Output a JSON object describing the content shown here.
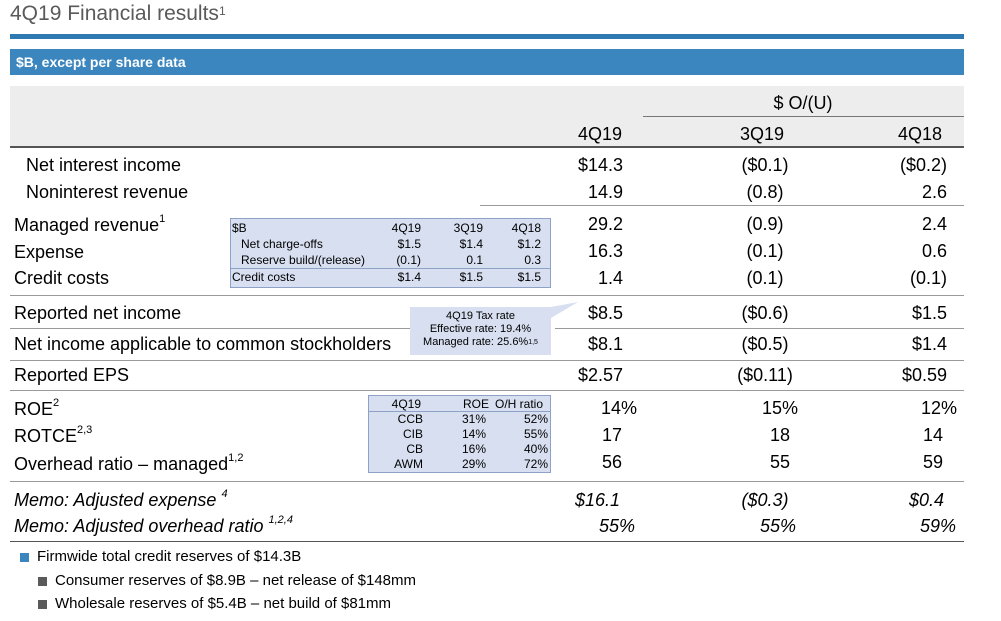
{
  "title": {
    "text": "4Q19 Financial results",
    "sup": "1"
  },
  "subheader": "$B, except per share data",
  "columns": {
    "group": "$ O/(U)",
    "c1": "4Q19",
    "c2": "3Q19",
    "c3": "4Q18"
  },
  "rows": {
    "nii": {
      "label": "Net interest income",
      "c1": "$14.3",
      "c2": "($0.1)",
      "c3": "($0.2)"
    },
    "nir": {
      "label": "Noninterest revenue",
      "c1": "14.9",
      "c2": "(0.8)",
      "c3": "2.6"
    },
    "mr": {
      "label": "Managed revenue",
      "sup": "1",
      "c1": "29.2",
      "c2": "(0.9)",
      "c3": "2.4"
    },
    "exp": {
      "label": "Expense",
      "c1": "16.3",
      "c2": "(0.1)",
      "c3": "0.6"
    },
    "cc": {
      "label": "Credit costs",
      "c1": "1.4",
      "c2": "(0.1)",
      "c3": "(0.1)"
    },
    "rni": {
      "label": "Reported net income",
      "c1": "$8.5",
      "c2": "($0.6)",
      "c3": "$1.5"
    },
    "nicom": {
      "label": "Net income applicable to common stockholders",
      "c1": "$8.1",
      "c2": "($0.5)",
      "c3": "$1.4"
    },
    "eps": {
      "label": "Reported EPS",
      "c1": "$2.57",
      "c2": "($0.11)",
      "c3": "$0.59"
    },
    "roe": {
      "label": "ROE",
      "sup": "2",
      "c1": "14%",
      "c2": "15%",
      "c3": "12%"
    },
    "rotce": {
      "label": "ROTCE",
      "sup": "2,3",
      "c1": "17",
      "c2": "18",
      "c3": "14"
    },
    "ohr": {
      "label": "Overhead ratio – managed",
      "sup": "1,2",
      "c1": "56",
      "c2": "55",
      "c3": "59"
    },
    "memo1": {
      "label": "Memo: Adjusted expense ",
      "sup": "4",
      "c1": "$16.1",
      "c2": "($0.3)",
      "c3": "$0.4"
    },
    "memo2": {
      "label": "Memo: Adjusted overhead ratio ",
      "sup": "1,2,4",
      "c1": "55%",
      "c2": "55%",
      "c3": "59%"
    }
  },
  "credit_box": {
    "header": [
      "$B",
      "4Q19",
      "3Q19",
      "4Q18"
    ],
    "rows": [
      [
        "Net charge-offs",
        "$1.5",
        "$1.4",
        "$1.2"
      ],
      [
        "Reserve build/(release)",
        "(0.1)",
        "0.1",
        "0.3"
      ],
      [
        "Credit costs",
        "$1.4",
        "$1.5",
        "$1.5"
      ]
    ]
  },
  "tax_callout": {
    "title": "4Q19 Tax rate",
    "effective": "Effective rate: 19.4%",
    "managed": "Managed rate: 25.6%",
    "managed_sup": "1,5"
  },
  "roe_box": {
    "header": [
      "4Q19",
      "ROE",
      "O/H ratio"
    ],
    "rows": [
      [
        "CCB",
        "31%",
        "52%"
      ],
      [
        "CIB",
        "14%",
        "55%"
      ],
      [
        "CB",
        "16%",
        "40%"
      ],
      [
        "AWM",
        "29%",
        "72%"
      ]
    ]
  },
  "bullets": {
    "main": "Firmwide total credit reserves of $14.3B",
    "sub1": "Consumer reserves of $8.9B – net release of $148mm",
    "sub2": "Wholesale reserves of $5.4B – net build of $81mm"
  },
  "colors": {
    "accent": "#3b86be",
    "box_fill": "#d7dff0",
    "header_fill": "#ededed"
  }
}
